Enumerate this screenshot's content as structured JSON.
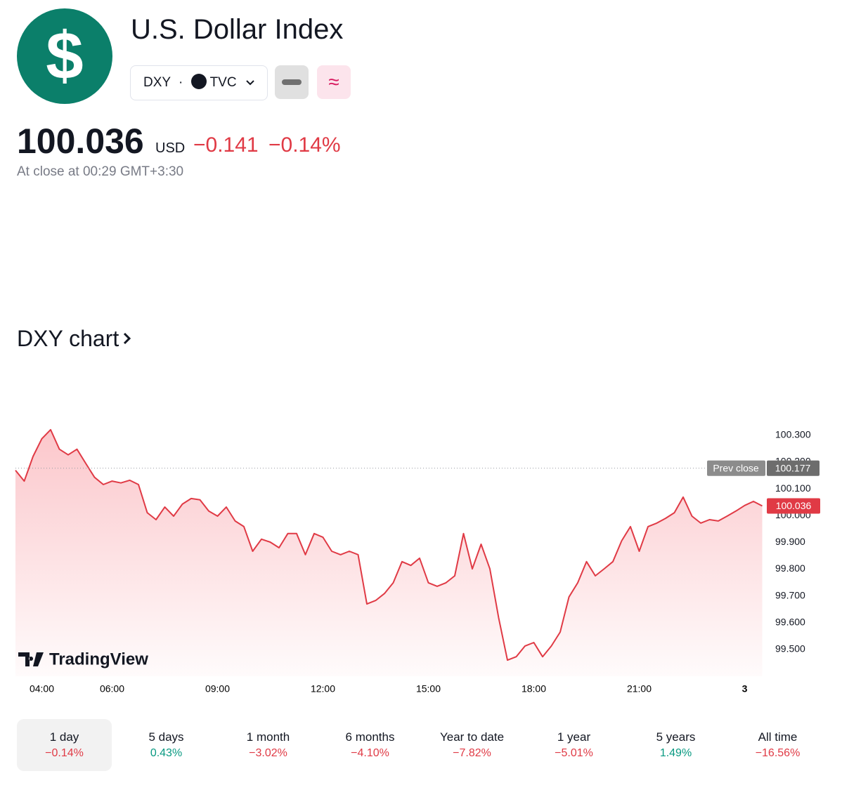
{
  "header": {
    "title": "U.S. Dollar Index",
    "symbol": "DXY",
    "exchange": "TVC",
    "price": "100.036",
    "currency": "USD",
    "change": "−0.141",
    "change_pct": "−0.14%",
    "close_note": "At close at 00:29 GMT+3:30"
  },
  "section_title": "DXY chart",
  "chart_data": {
    "type": "line",
    "color": "#e03a45",
    "brand": "TradingView",
    "x": [
      3.25,
      3.5,
      3.75,
      4,
      4.25,
      4.5,
      4.75,
      5,
      5.25,
      5.5,
      5.75,
      6,
      6.25,
      6.5,
      6.75,
      7,
      7.25,
      7.5,
      7.75,
      8,
      8.25,
      8.5,
      8.75,
      9,
      9.25,
      9.5,
      9.75,
      10,
      10.25,
      10.5,
      10.75,
      11,
      11.25,
      11.5,
      11.75,
      12,
      12.25,
      12.5,
      12.75,
      13,
      13.25,
      13.5,
      13.75,
      14,
      14.25,
      14.5,
      14.75,
      15,
      15.25,
      15.5,
      15.75,
      16,
      16.25,
      16.5,
      16.75,
      17,
      17.25,
      17.5,
      17.75,
      18,
      18.25,
      18.5,
      18.75,
      19,
      19.25,
      19.5,
      19.75,
      20,
      20.25,
      20.5,
      20.75,
      21,
      21.25,
      21.5,
      21.75,
      22,
      22.25,
      22.5,
      22.75,
      23,
      23.25,
      23.5,
      23.75,
      24,
      24.25,
      24.5
    ],
    "values": [
      100.169,
      100.129,
      100.221,
      100.287,
      100.321,
      100.248,
      100.227,
      100.248,
      100.195,
      100.143,
      100.116,
      100.129,
      100.122,
      100.132,
      100.116,
      100.011,
      99.985,
      100.032,
      99.998,
      100.043,
      100.064,
      100.059,
      100.017,
      99.998,
      100.032,
      99.98,
      99.959,
      99.867,
      99.912,
      99.901,
      99.88,
      99.933,
      99.933,
      99.854,
      99.933,
      99.919,
      99.867,
      99.854,
      99.867,
      99.854,
      99.67,
      99.683,
      99.709,
      99.749,
      99.828,
      99.814,
      99.841,
      99.749,
      99.736,
      99.749,
      99.775,
      99.933,
      99.801,
      99.893,
      99.801,
      99.618,
      99.46,
      99.473,
      99.513,
      99.526,
      99.473,
      99.513,
      99.565,
      99.696,
      99.749,
      99.828,
      99.775,
      99.801,
      99.828,
      99.906,
      99.959,
      99.867,
      99.959,
      99.972,
      99.99,
      100.011,
      100.069,
      99.998,
      99.972,
      99.985,
      99.98,
      99.998,
      100.017,
      100.038,
      100.053,
      100.036
    ],
    "last_label": "100.036",
    "prev_close": {
      "label": "Prev close",
      "value": 100.177,
      "value_label": "100.177"
    },
    "xlim": [
      3.25,
      24.5
    ],
    "xticks": [
      {
        "value": 4,
        "label": "04:00"
      },
      {
        "value": 6,
        "label": "06:00"
      },
      {
        "value": 9,
        "label": "09:00"
      },
      {
        "value": 12,
        "label": "12:00"
      },
      {
        "value": 15,
        "label": "15:00"
      },
      {
        "value": 18,
        "label": "18:00"
      },
      {
        "value": 21,
        "label": "21:00"
      },
      {
        "value": 24,
        "label": "3"
      }
    ],
    "ylim": [
      99.4,
      100.36
    ],
    "yticks": [
      {
        "value": 100.3,
        "label": "100.300"
      },
      {
        "value": 100.2,
        "label": "100.200"
      },
      {
        "value": 100.1,
        "label": "100.100"
      },
      {
        "value": 100,
        "label": "100.000"
      },
      {
        "value": 99.9,
        "label": "99.900"
      },
      {
        "value": 99.8,
        "label": "99.800"
      },
      {
        "value": 99.7,
        "label": "99.700"
      },
      {
        "value": 99.6,
        "label": "99.600"
      },
      {
        "value": 99.5,
        "label": "99.500"
      }
    ]
  },
  "periods": [
    {
      "label": "1 day",
      "change": "−0.14%",
      "color": "#e03a45"
    },
    {
      "label": "5 days",
      "change": "0.43%",
      "color": "#089981"
    },
    {
      "label": "1 month",
      "change": "−3.02%",
      "color": "#e03a45"
    },
    {
      "label": "6 months",
      "change": "−4.10%",
      "color": "#e03a45"
    },
    {
      "label": "Year to date",
      "change": "−7.82%",
      "color": "#e03a45"
    },
    {
      "label": "1 year",
      "change": "−5.01%",
      "color": "#e03a45"
    },
    {
      "label": "5 years",
      "change": "1.49%",
      "color": "#089981"
    },
    {
      "label": "All time",
      "change": "−16.56%",
      "color": "#e03a45"
    }
  ]
}
